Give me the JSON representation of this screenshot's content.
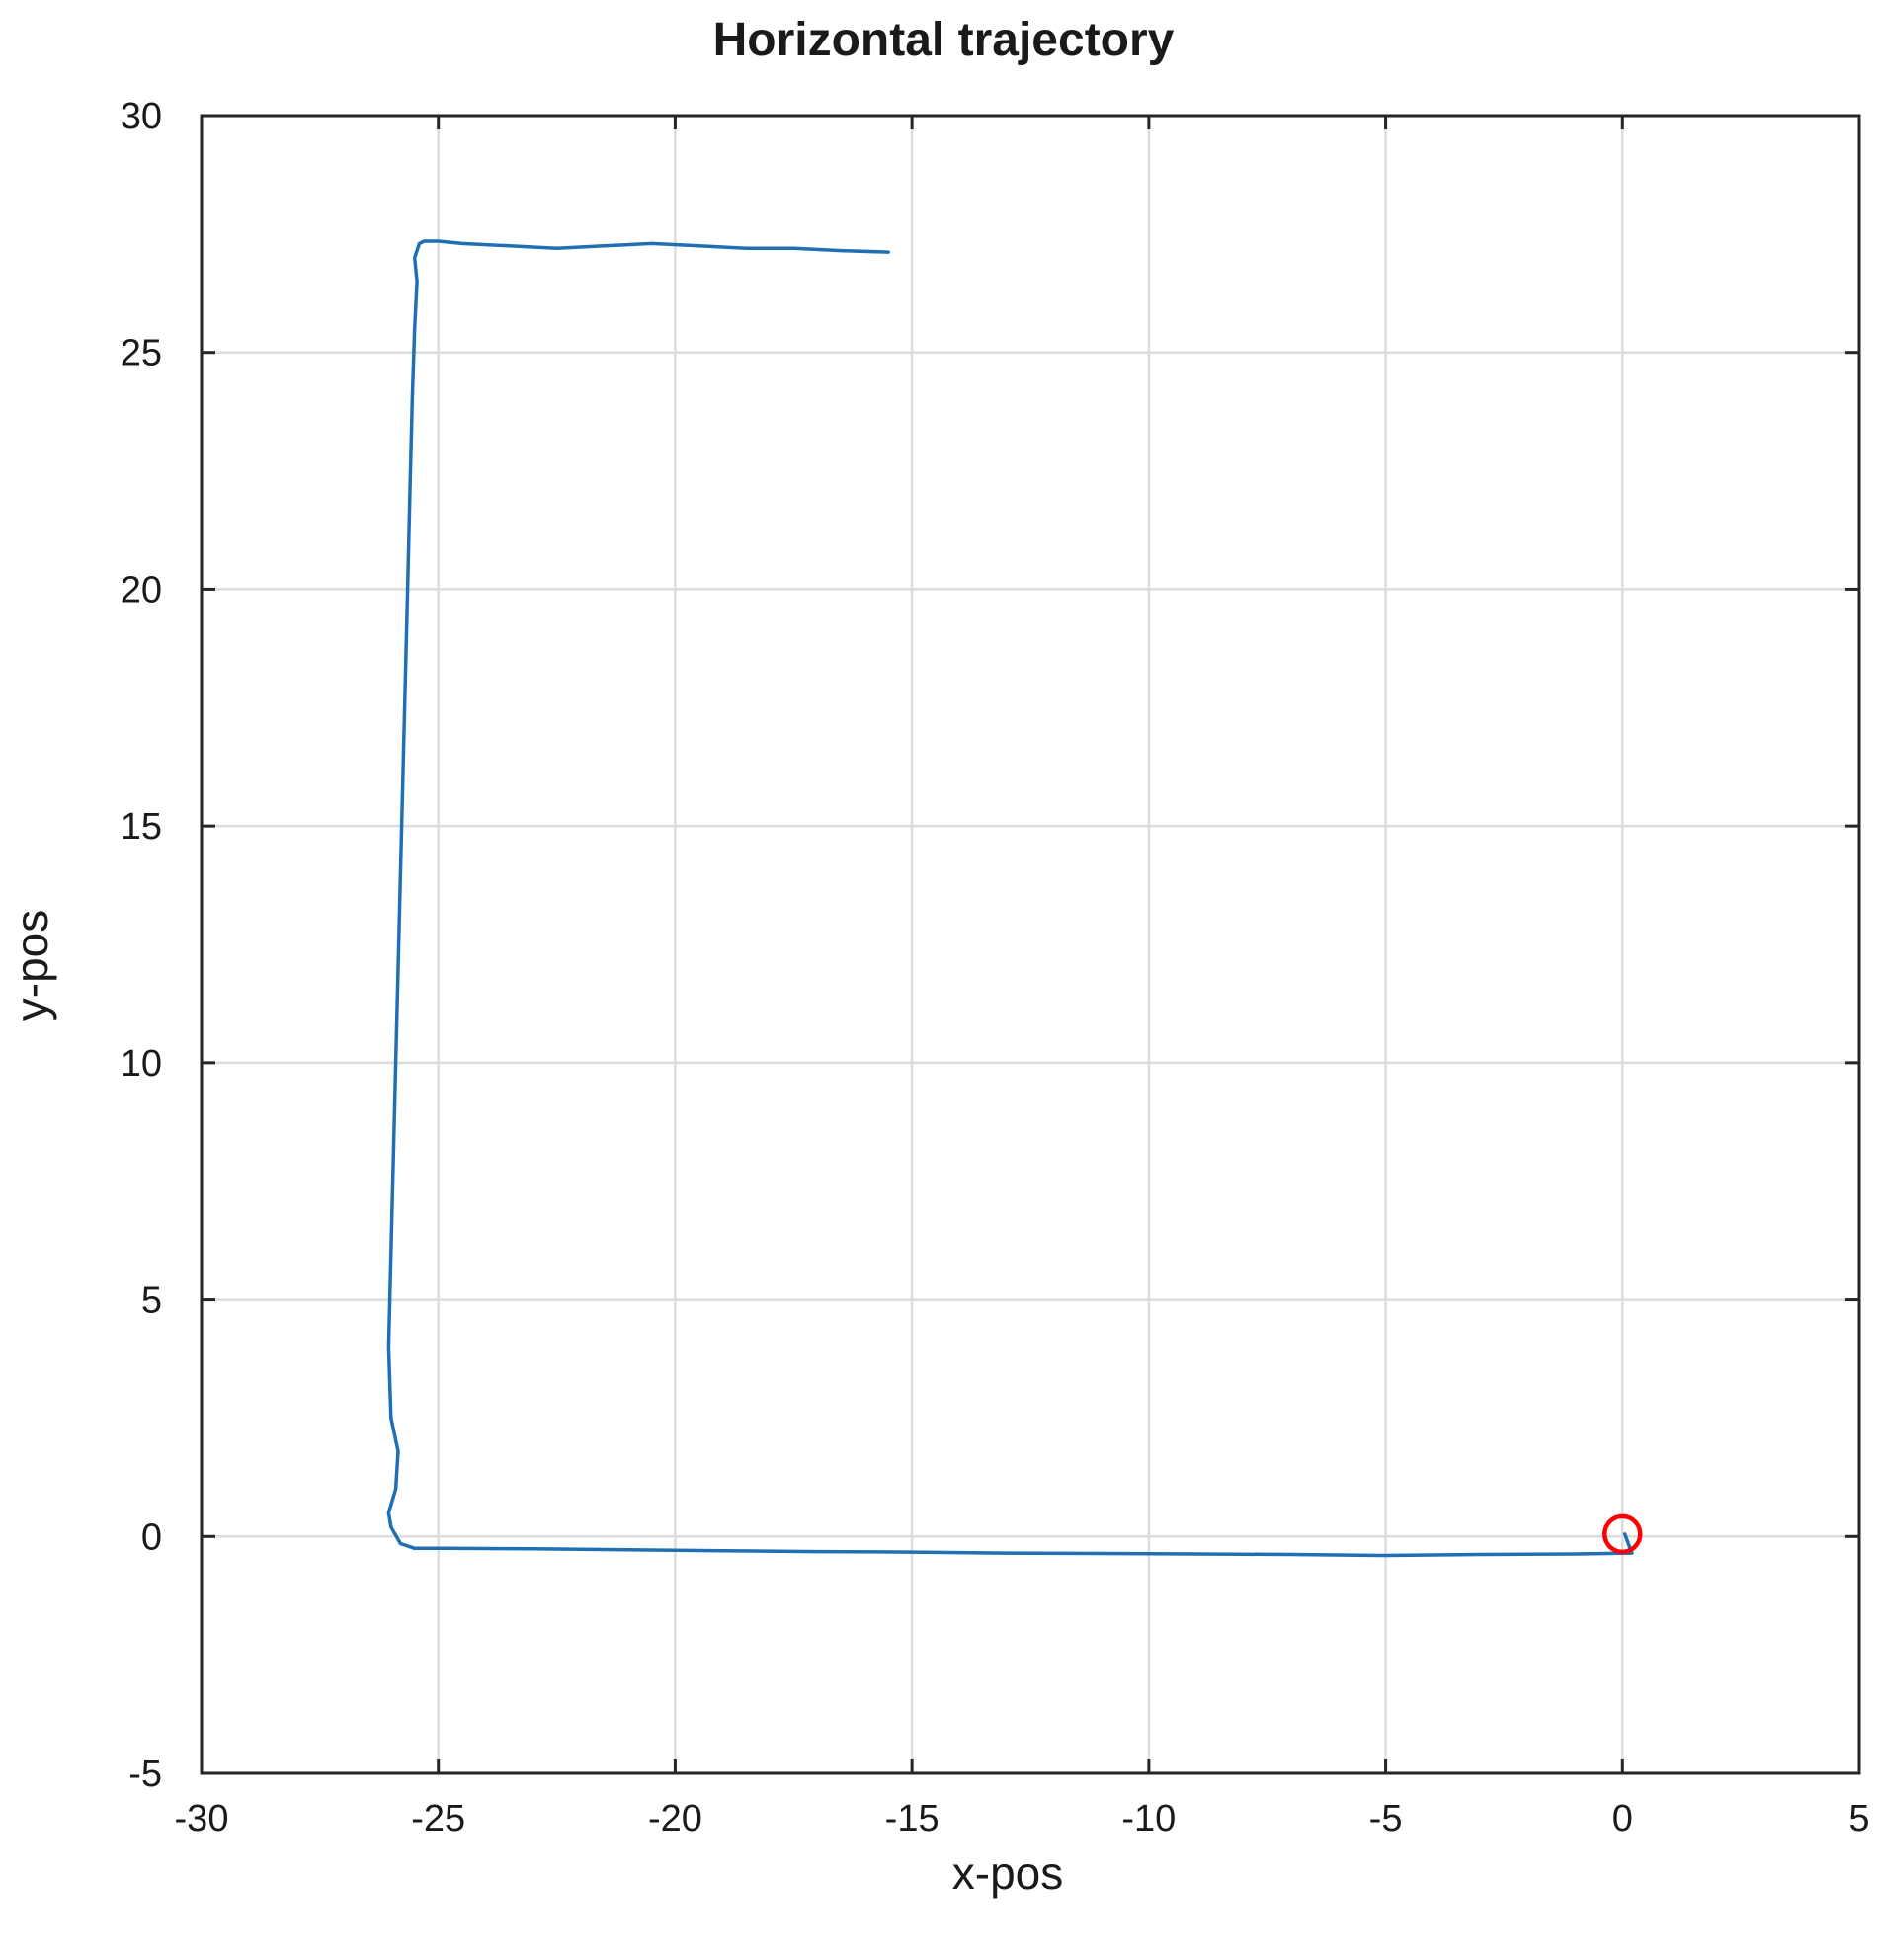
{
  "chart_data": {
    "type": "line",
    "title": "Horizontal trajectory",
    "xlabel": "x-pos",
    "ylabel": "y-pos",
    "xlim": [
      -30,
      5
    ],
    "ylim": [
      -5,
      30
    ],
    "xticks": [
      -30,
      -25,
      -20,
      -15,
      -10,
      -5,
      0,
      5
    ],
    "yticks": [
      -5,
      0,
      5,
      10,
      15,
      20,
      25,
      30
    ],
    "xtick_labels": [
      "-30",
      "-25",
      "-20",
      "-15",
      "-10",
      "-5",
      "0",
      "5"
    ],
    "ytick_labels": [
      "-5",
      "0",
      "5",
      "10",
      "15",
      "20",
      "25",
      "30"
    ],
    "grid": true,
    "series": [
      {
        "color": "#1f6fb5",
        "x": [
          0.05,
          0.2,
          -1.0,
          -3.0,
          -5.0,
          -7.0,
          -9.0,
          -11.0,
          -13.0,
          -15.0,
          -17.0,
          -19.0,
          -21.0,
          -23.0,
          -24.8,
          -25.5,
          -25.8,
          -26.0,
          -26.05,
          -25.9,
          -25.85,
          -26.0,
          -26.05,
          -26.0,
          -25.95,
          -25.9,
          -25.85,
          -25.8,
          -25.75,
          -25.7,
          -25.65,
          -25.6,
          -25.55,
          -25.5,
          -25.45,
          -25.5,
          -25.4,
          -25.3,
          -25.0,
          -24.5,
          -23.5,
          -22.5,
          -21.5,
          -20.5,
          -19.5,
          -18.5,
          -17.5,
          -16.5,
          -15.5
        ],
        "y": [
          0.05,
          -0.35,
          -0.37,
          -0.38,
          -0.4,
          -0.38,
          -0.37,
          -0.36,
          -0.35,
          -0.33,
          -0.32,
          -0.3,
          -0.28,
          -0.26,
          -0.25,
          -0.25,
          -0.15,
          0.2,
          0.5,
          1.0,
          1.8,
          2.5,
          4.0,
          6.0,
          8.0,
          10.0,
          12.0,
          14.0,
          16.0,
          18.0,
          20.0,
          22.0,
          24.0,
          25.5,
          26.5,
          27.0,
          27.3,
          27.35,
          27.35,
          27.3,
          27.25,
          27.2,
          27.25,
          27.3,
          27.25,
          27.2,
          27.2,
          27.15,
          27.12
        ]
      }
    ],
    "markers": [
      {
        "shape": "circle",
        "color": "#ff0000",
        "x": 0.0,
        "y": 0.05
      }
    ]
  }
}
